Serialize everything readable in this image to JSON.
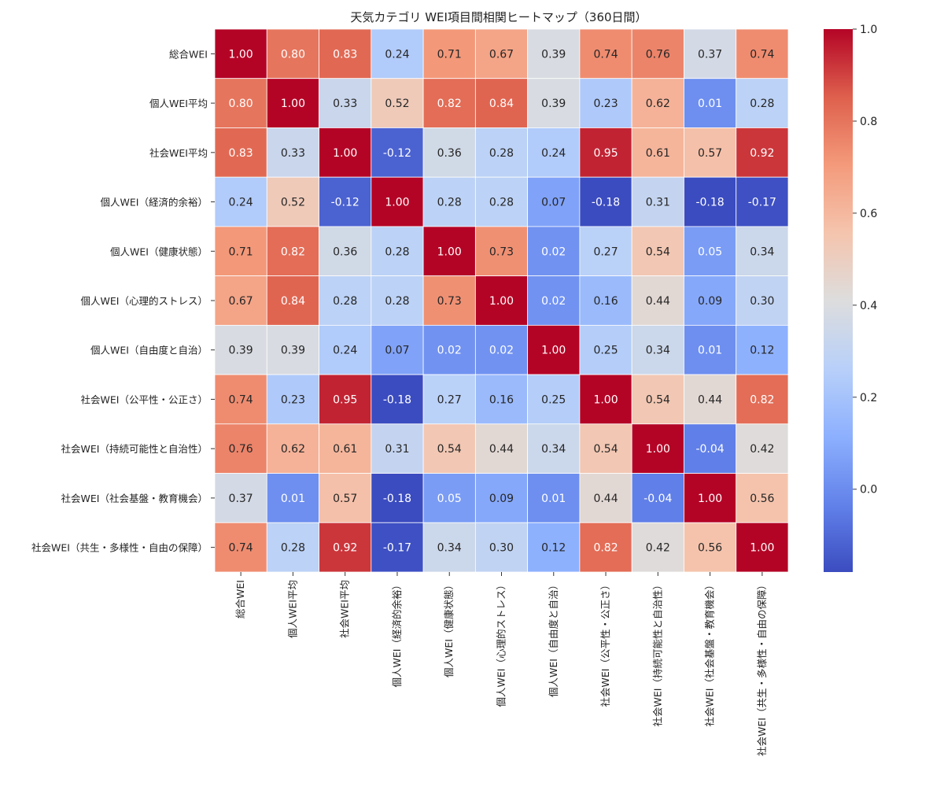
{
  "chart_data": {
    "type": "heatmap",
    "title": "天気カテゴリ WEI項目間相関ヒートマップ（360日間）",
    "labels": [
      "総合WEI",
      "個人WEI平均",
      "社会WEI平均",
      "個人WEI（経済的余裕）",
      "個人WEI（健康状態）",
      "個人WEI（心理的ストレス）",
      "個人WEI（自由度と自治）",
      "社会WEI（公平性・公正さ）",
      "社会WEI（持続可能性と自治性）",
      "社会WEI（社会基盤・教育機会）",
      "社会WEI（共生・多様性・自由の保障）"
    ],
    "matrix": [
      [
        1.0,
        0.8,
        0.83,
        0.24,
        0.71,
        0.67,
        0.39,
        0.74,
        0.76,
        0.37,
        0.74
      ],
      [
        0.8,
        1.0,
        0.33,
        0.52,
        0.82,
        0.84,
        0.39,
        0.23,
        0.62,
        0.01,
        0.28
      ],
      [
        0.83,
        0.33,
        1.0,
        -0.12,
        0.36,
        0.28,
        0.24,
        0.95,
        0.61,
        0.57,
        0.92
      ],
      [
        0.24,
        0.52,
        -0.12,
        1.0,
        0.28,
        0.28,
        0.07,
        -0.18,
        0.31,
        -0.18,
        -0.17
      ],
      [
        0.71,
        0.82,
        0.36,
        0.28,
        1.0,
        0.73,
        0.02,
        0.27,
        0.54,
        0.05,
        0.34
      ],
      [
        0.67,
        0.84,
        0.28,
        0.28,
        0.73,
        1.0,
        0.02,
        0.16,
        0.44,
        0.09,
        0.3
      ],
      [
        0.39,
        0.39,
        0.24,
        0.07,
        0.02,
        0.02,
        1.0,
        0.25,
        0.34,
        0.01,
        0.12
      ],
      [
        0.74,
        0.23,
        0.95,
        -0.18,
        0.27,
        0.16,
        0.25,
        1.0,
        0.54,
        0.44,
        0.82
      ],
      [
        0.76,
        0.62,
        0.61,
        0.31,
        0.54,
        0.44,
        0.34,
        0.54,
        1.0,
        -0.04,
        0.42
      ],
      [
        0.37,
        0.01,
        0.57,
        -0.18,
        0.05,
        0.09,
        0.01,
        0.44,
        -0.04,
        1.0,
        0.56
      ],
      [
        0.74,
        0.28,
        0.92,
        -0.17,
        0.34,
        0.3,
        0.12,
        0.82,
        0.42,
        0.56,
        1.0
      ]
    ],
    "colormap": "coolwarm",
    "vmin": -0.18,
    "vmax": 1.0,
    "colorbar_ticks": [
      1.0,
      0.8,
      0.6,
      0.4,
      0.2,
      0.0
    ],
    "colorbar_tick_labels": [
      "1.0",
      "0.8",
      "0.6",
      "0.4",
      "0.2",
      "0.0"
    ],
    "value_format": "2 decimals",
    "cell_border_color": "#ffffff"
  }
}
